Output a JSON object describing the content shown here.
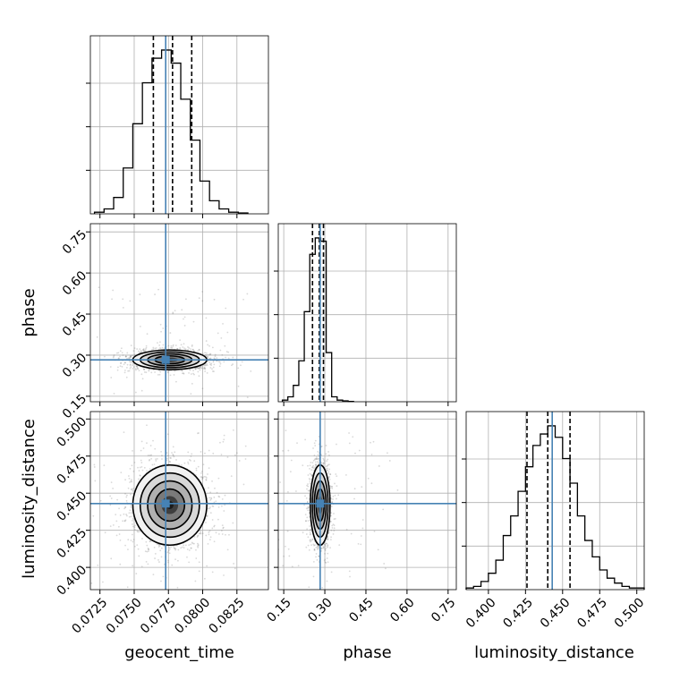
{
  "chart_data": {
    "type": "corner",
    "parameters": [
      {
        "name": "geocent_time",
        "range": [
          0.0718,
          0.0848
        ],
        "ticks": [
          0.0725,
          0.075,
          0.0775,
          0.08,
          0.0825
        ],
        "tick_labels": [
          "0.0725",
          "0.0750",
          "0.0775",
          "0.0800",
          "0.0825"
        ],
        "truth": 0.0773,
        "quantiles": [
          0.0764,
          0.0778,
          0.0792
        ],
        "hist_centers": [
          0.07245,
          0.07315,
          0.07385,
          0.07455,
          0.07525,
          0.07595,
          0.07665,
          0.07735,
          0.07805,
          0.07875,
          0.07945,
          0.08015,
          0.08085,
          0.08155,
          0.08225,
          0.08295
        ],
        "hist_rel": [
          0.01,
          0.03,
          0.1,
          0.28,
          0.55,
          0.8,
          0.95,
          1.0,
          0.92,
          0.7,
          0.45,
          0.2,
          0.08,
          0.03,
          0.01,
          0.005
        ]
      },
      {
        "name": "phase",
        "range": [
          0.13,
          0.78
        ],
        "ticks": [
          0.15,
          0.3,
          0.45,
          0.6,
          0.75
        ],
        "tick_labels": [
          "0.15",
          "0.30",
          "0.45",
          "0.60",
          "0.75"
        ],
        "truth": 0.283,
        "quantiles": [
          0.255,
          0.28,
          0.295
        ],
        "hist_centers": [
          0.155,
          0.175,
          0.195,
          0.215,
          0.235,
          0.255,
          0.275,
          0.295,
          0.315,
          0.335,
          0.355,
          0.375,
          0.395
        ],
        "hist_rel": [
          0.01,
          0.03,
          0.1,
          0.25,
          0.55,
          0.9,
          1.0,
          0.98,
          0.3,
          0.03,
          0.01,
          0.005,
          0.002
        ]
      },
      {
        "name": "luminosity_distance",
        "range": [
          0.385,
          0.505
        ],
        "ticks": [
          0.4,
          0.425,
          0.45,
          0.475,
          0.5
        ],
        "tick_labels": [
          "0.400",
          "0.425",
          "0.450",
          "0.475",
          "0.500"
        ],
        "truth": 0.443,
        "quantiles": [
          0.426,
          0.44,
          0.455
        ],
        "hist_centers": [
          0.3875,
          0.3925,
          0.3975,
          0.4025,
          0.4075,
          0.4125,
          0.4175,
          0.4225,
          0.4275,
          0.4325,
          0.4375,
          0.4425,
          0.4475,
          0.4525,
          0.4575,
          0.4625,
          0.4675,
          0.4725,
          0.4775,
          0.4825,
          0.4875,
          0.4925,
          0.4975,
          0.5025
        ],
        "hist_rel": [
          0.01,
          0.02,
          0.05,
          0.1,
          0.18,
          0.33,
          0.45,
          0.6,
          0.75,
          0.88,
          0.95,
          1.0,
          0.93,
          0.8,
          0.65,
          0.45,
          0.3,
          0.2,
          0.12,
          0.07,
          0.04,
          0.02,
          0.01,
          0.01
        ]
      }
    ],
    "pairs": [
      {
        "x": 0,
        "y": 1,
        "center": [
          0.0776,
          0.283
        ],
        "sigma": [
          0.00135,
          0.018
        ]
      },
      {
        "x": 0,
        "y": 2,
        "center": [
          0.0776,
          0.442
        ],
        "sigma": [
          0.00135,
          0.0135
        ]
      },
      {
        "x": 1,
        "y": 2,
        "center": [
          0.283,
          0.442
        ],
        "sigma": [
          0.018,
          0.0135
        ]
      }
    ],
    "truth_color": "#4682b4",
    "grid": true
  }
}
